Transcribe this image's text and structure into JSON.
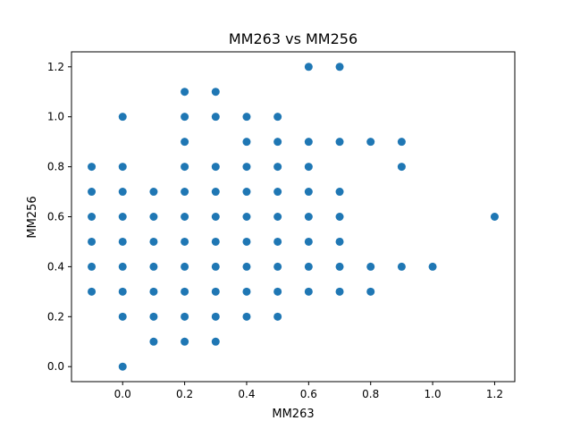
{
  "chart_data": {
    "type": "scatter",
    "title": "MM263 vs MM256",
    "xlabel": "MM263",
    "ylabel": "MM256",
    "xlim": [
      -0.165,
      1.265
    ],
    "ylim": [
      -0.06,
      1.26
    ],
    "xticks": [
      0.0,
      0.2,
      0.4,
      0.6,
      0.8,
      1.0,
      1.2
    ],
    "xtick_labels": [
      "0.0",
      "0.2",
      "0.4",
      "0.6",
      "0.8",
      "1.0",
      "1.2"
    ],
    "yticks": [
      0.0,
      0.2,
      0.4,
      0.6,
      0.8,
      1.0,
      1.2
    ],
    "ytick_labels": [
      "0.0",
      "0.2",
      "0.4",
      "0.6",
      "0.8",
      "1.0",
      "1.2"
    ],
    "grid": false,
    "marker_color": "#1f77b4",
    "series": [
      {
        "name": "MM263 vs MM256",
        "points": [
          [
            -0.1,
            0.3
          ],
          [
            -0.1,
            0.4
          ],
          [
            -0.1,
            0.5
          ],
          [
            -0.1,
            0.6
          ],
          [
            -0.1,
            0.7
          ],
          [
            -0.1,
            0.8
          ],
          [
            0.0,
            0.0
          ],
          [
            0.0,
            0.2
          ],
          [
            0.0,
            0.3
          ],
          [
            0.0,
            0.4
          ],
          [
            0.0,
            0.5
          ],
          [
            0.0,
            0.6
          ],
          [
            0.0,
            0.7
          ],
          [
            0.0,
            0.8
          ],
          [
            0.0,
            1.0
          ],
          [
            0.1,
            0.1
          ],
          [
            0.1,
            0.2
          ],
          [
            0.1,
            0.3
          ],
          [
            0.1,
            0.4
          ],
          [
            0.1,
            0.5
          ],
          [
            0.1,
            0.6
          ],
          [
            0.1,
            0.7
          ],
          [
            0.2,
            0.1
          ],
          [
            0.2,
            0.2
          ],
          [
            0.2,
            0.3
          ],
          [
            0.2,
            0.4
          ],
          [
            0.2,
            0.5
          ],
          [
            0.2,
            0.6
          ],
          [
            0.2,
            0.7
          ],
          [
            0.2,
            0.8
          ],
          [
            0.2,
            0.9
          ],
          [
            0.2,
            1.0
          ],
          [
            0.2,
            1.1
          ],
          [
            0.3,
            0.1
          ],
          [
            0.3,
            0.2
          ],
          [
            0.3,
            0.3
          ],
          [
            0.3,
            0.4
          ],
          [
            0.3,
            0.5
          ],
          [
            0.3,
            0.6
          ],
          [
            0.3,
            0.7
          ],
          [
            0.3,
            0.8
          ],
          [
            0.3,
            1.0
          ],
          [
            0.3,
            1.1
          ],
          [
            0.4,
            0.2
          ],
          [
            0.4,
            0.3
          ],
          [
            0.4,
            0.4
          ],
          [
            0.4,
            0.5
          ],
          [
            0.4,
            0.6
          ],
          [
            0.4,
            0.7
          ],
          [
            0.4,
            0.8
          ],
          [
            0.4,
            0.9
          ],
          [
            0.4,
            1.0
          ],
          [
            0.5,
            0.2
          ],
          [
            0.5,
            0.3
          ],
          [
            0.5,
            0.4
          ],
          [
            0.5,
            0.5
          ],
          [
            0.5,
            0.6
          ],
          [
            0.5,
            0.7
          ],
          [
            0.5,
            0.8
          ],
          [
            0.5,
            0.9
          ],
          [
            0.5,
            1.0
          ],
          [
            0.6,
            0.3
          ],
          [
            0.6,
            0.4
          ],
          [
            0.6,
            0.5
          ],
          [
            0.6,
            0.6
          ],
          [
            0.6,
            0.7
          ],
          [
            0.6,
            0.8
          ],
          [
            0.6,
            0.9
          ],
          [
            0.6,
            1.2
          ],
          [
            0.7,
            0.3
          ],
          [
            0.7,
            0.4
          ],
          [
            0.7,
            0.5
          ],
          [
            0.7,
            0.6
          ],
          [
            0.7,
            0.7
          ],
          [
            0.7,
            0.9
          ],
          [
            0.7,
            1.2
          ],
          [
            0.8,
            0.3
          ],
          [
            0.8,
            0.4
          ],
          [
            0.8,
            0.9
          ],
          [
            0.9,
            0.4
          ],
          [
            0.9,
            0.8
          ],
          [
            0.9,
            0.9
          ],
          [
            1.0,
            0.4
          ],
          [
            1.2,
            0.6
          ]
        ]
      }
    ]
  }
}
